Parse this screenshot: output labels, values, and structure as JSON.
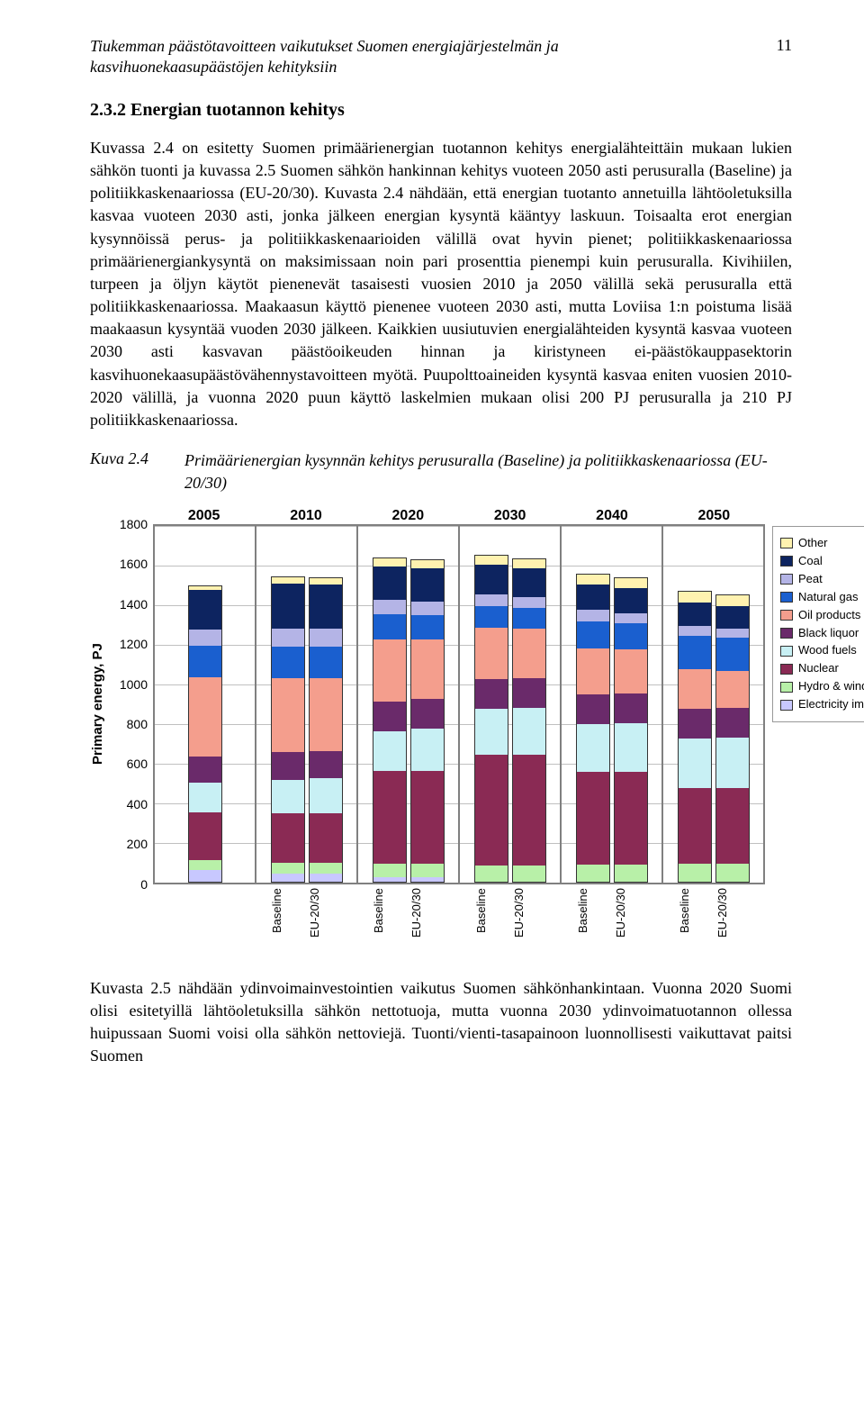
{
  "header": {
    "running_title": "Tiukemman päästötavoitteen vaikutukset Suomen energiajärjestelmän ja kasvihuonekaasupäästöjen kehityksiin",
    "page_number": "11"
  },
  "section": {
    "heading": "2.3.2 Energian tuotannon kehitys",
    "paragraph": "Kuvassa 2.4 on esitetty Suomen primäärienergian tuotannon kehitys energialähteittäin mukaan lukien sähkön tuonti ja kuvassa 2.5 Suomen sähkön hankinnan kehitys vuoteen 2050 asti perusuralla (Baseline) ja politiikkaskenaariossa (EU-20/30). Kuvasta 2.4 nähdään, että energian tuotanto annetuilla lähtöoletuksilla kasvaa vuoteen 2030 asti, jonka jälkeen energian kysyntä kääntyy laskuun. Toisaalta erot energian kysynnöissä perus- ja politiikkaskenaarioiden välillä ovat hyvin pienet; politiikkaskenaariossa primäärienergiankysyntä on maksimissaan noin pari prosenttia pienempi kuin perusuralla. Kivihiilen, turpeen ja öljyn käytöt pienenevät tasaisesti vuosien 2010 ja 2050 välillä sekä perusuralla että politiikkaskenaariossa. Maakaasun käyttö pienenee vuoteen 2030 asti, mutta Loviisa 1:n poistuma lisää maakaasun kysyntää vuoden 2030 jälkeen. Kaikkien uusiutuvien energialähteiden kysyntä kasvaa vuoteen 2030 asti kasvavan päästöoikeuden hinnan ja kiristyneen ei-päästökauppasektorin kasvihuonekaasupäästövähennystavoitteen myötä. Puupolttoaineiden kysyntä kasvaa eniten vuosien 2010-2020 välillä, ja vuonna 2020 puun käyttö laskelmien mukaan olisi 200 PJ perusuralla ja 210 PJ politiikkaskenaariossa."
  },
  "figure": {
    "label": "Kuva 2.4",
    "caption": "Primäärienergian kysynnän kehitys perusuralla (Baseline) ja politiikkaskenaariossa (EU-20/30)"
  },
  "chart": {
    "type": "stacked-bar",
    "y_label": "Primary energy, PJ",
    "y_max": 1800,
    "y_tick_step": 200,
    "years": [
      "2005",
      "2010",
      "2020",
      "2030",
      "2040",
      "2050"
    ],
    "scenarios": [
      "Baseline",
      "EU-20/30"
    ],
    "legend": [
      "Other",
      "Coal",
      "Peat",
      "Natural gas",
      "Oil products",
      "Black liquor",
      "Wood fuels",
      "Nuclear",
      "Hydro & wind",
      "Electricity imports"
    ],
    "colors": {
      "Other": "#fff2b0",
      "Coal": "#0d2460",
      "Peat": "#b4b4e6",
      "Natural gas": "#1a5fcf",
      "Oil products": "#f49e8d",
      "Black liquor": "#6a2a6a",
      "Wood fuels": "#c8f0f4",
      "Nuclear": "#8a2a54",
      "Hydro & wind": "#b8f0a8",
      "Electricity imports": "#c8c8ff"
    },
    "grid_color": "#c0c0c0",
    "border_color": "#808080",
    "background_color": "#ffffff",
    "data": {
      "2005": {
        "single": {
          "Electricity imports": 60,
          "Hydro & wind": 50,
          "Nuclear": 240,
          "Wood fuels": 150,
          "Black liquor": 130,
          "Oil products": 400,
          "Natural gas": 160,
          "Peat": 80,
          "Coal": 200,
          "Other": 20
        }
      },
      "2010": {
        "Baseline": {
          "Electricity imports": 40,
          "Hydro & wind": 55,
          "Nuclear": 250,
          "Wood fuels": 170,
          "Black liquor": 140,
          "Oil products": 370,
          "Natural gas": 160,
          "Peat": 90,
          "Coal": 230,
          "Other": 30
        },
        "EU-20/30": {
          "Electricity imports": 40,
          "Hydro & wind": 55,
          "Nuclear": 250,
          "Wood fuels": 175,
          "Black liquor": 140,
          "Oil products": 365,
          "Natural gas": 160,
          "Peat": 90,
          "Coal": 225,
          "Other": 30
        }
      },
      "2020": {
        "Baseline": {
          "Electricity imports": 20,
          "Hydro & wind": 70,
          "Nuclear": 470,
          "Wood fuels": 200,
          "Black liquor": 150,
          "Oil products": 310,
          "Natural gas": 130,
          "Peat": 70,
          "Coal": 170,
          "Other": 40
        },
        "EU-20/30": {
          "Electricity imports": 20,
          "Hydro & wind": 70,
          "Nuclear": 470,
          "Wood fuels": 210,
          "Black liquor": 150,
          "Oil products": 300,
          "Natural gas": 125,
          "Peat": 70,
          "Coal": 165,
          "Other": 40
        }
      },
      "2030": {
        "Baseline": {
          "Electricity imports": 0,
          "Hydro & wind": 80,
          "Nuclear": 560,
          "Wood fuels": 230,
          "Black liquor": 150,
          "Oil products": 260,
          "Natural gas": 110,
          "Peat": 60,
          "Coal": 150,
          "Other": 45
        },
        "EU-20/30": {
          "Electricity imports": 0,
          "Hydro & wind": 80,
          "Nuclear": 560,
          "Wood fuels": 235,
          "Black liquor": 150,
          "Oil products": 250,
          "Natural gas": 105,
          "Peat": 55,
          "Coal": 145,
          "Other": 45
        }
      },
      "2040": {
        "Baseline": {
          "Electricity imports": 0,
          "Hydro & wind": 85,
          "Nuclear": 470,
          "Wood fuels": 240,
          "Black liquor": 150,
          "Oil products": 230,
          "Natural gas": 140,
          "Peat": 55,
          "Coal": 130,
          "Other": 50
        },
        "EU-20/30": {
          "Electricity imports": 0,
          "Hydro & wind": 85,
          "Nuclear": 470,
          "Wood fuels": 245,
          "Black liquor": 150,
          "Oil products": 220,
          "Natural gas": 135,
          "Peat": 50,
          "Coal": 125,
          "Other": 50
        }
      },
      "2050": {
        "Baseline": {
          "Electricity imports": 0,
          "Hydro & wind": 90,
          "Nuclear": 380,
          "Wood fuels": 250,
          "Black liquor": 150,
          "Oil products": 200,
          "Natural gas": 170,
          "Peat": 50,
          "Coal": 120,
          "Other": 55
        },
        "EU-20/30": {
          "Electricity imports": 0,
          "Hydro & wind": 90,
          "Nuclear": 380,
          "Wood fuels": 255,
          "Black liquor": 150,
          "Oil products": 190,
          "Natural gas": 165,
          "Peat": 45,
          "Coal": 115,
          "Other": 55
        }
      }
    }
  },
  "footer": {
    "paragraph": "Kuvasta 2.5 nähdään ydinvoimainvestointien vaikutus Suomen sähkönhankintaan. Vuonna 2020 Suomi olisi esitetyillä lähtöoletuksilla sähkön nettotuoja, mutta vuonna 2030 ydinvoimatuotannon ollessa huipussaan Suomi voisi olla sähkön nettoviejä. Tuonti/vienti-tasapainoon luonnollisesti vaikuttavat paitsi Suomen"
  }
}
